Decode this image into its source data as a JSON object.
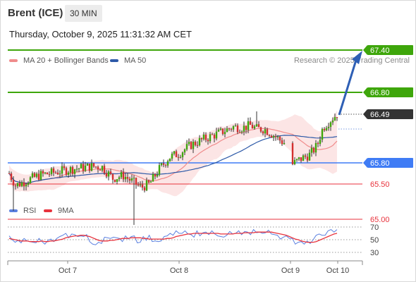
{
  "header": {
    "instrument": "Brent (ICE)",
    "timeframe": "30 MIN",
    "datetime": "Thursday, October 9, 2025 11:31:32 AM CET"
  },
  "legend": {
    "ma20_label": "MA 20 + Bollinger Bands",
    "ma50_label": "MA 50",
    "rsi_label": "RSI",
    "ma9_label": "9MA",
    "watermark": "Research © 2025 Trading Central"
  },
  "colors": {
    "resistance": "#3ea60b",
    "support": "#3f7cf5",
    "target_red": "#e8323c",
    "ma20": "#f08c8c",
    "ma50": "#2e5aa8",
    "bollinger_fill": "#fce0e0",
    "up_candle": "#3ea60b",
    "down_candle": "#d32f2f",
    "arrow": "#2e5fb5",
    "last_price": "#333333",
    "rsi_line": "#5b80e0",
    "rsi_ma": "#e8323c"
  },
  "chart_data": [
    {
      "type": "candlestick",
      "title": "",
      "xlabel": "",
      "ylabel": "",
      "ylim": [
        64.85,
        67.6
      ],
      "x_ticks": [
        "Oct 7",
        "Oct 8",
        "Oct 9",
        "Oct 10"
      ],
      "levels": [
        {
          "label": "67.40",
          "value": 67.4,
          "kind": "resistance"
        },
        {
          "label": "66.80",
          "value": 66.8,
          "kind": "resistance"
        },
        {
          "label": "66.49",
          "value": 66.49,
          "kind": "last"
        },
        {
          "label": "65.80",
          "value": 65.8,
          "kind": "support"
        },
        {
          "label": "65.50",
          "value": 65.5,
          "kind": "target"
        },
        {
          "label": "65.00",
          "value": 65.0,
          "kind": "target"
        }
      ],
      "forecast": {
        "from": 66.49,
        "to": 67.4,
        "direction": "up"
      },
      "indicators": [
        "MA 20 + Bollinger Bands",
        "MA 50"
      ]
    },
    {
      "type": "line",
      "title": "",
      "ylim": [
        20,
        80
      ],
      "y_ticks": [
        "70",
        "50",
        "30"
      ],
      "series": [
        {
          "name": "RSI",
          "values": [
            56,
            50,
            46,
            49,
            45,
            52,
            48,
            47,
            46,
            45,
            52,
            47,
            43,
            49,
            51,
            47,
            52,
            55,
            57,
            60,
            53,
            59,
            58,
            55,
            56,
            55,
            58,
            47,
            43,
            42,
            46,
            44,
            54,
            53,
            52,
            54,
            53,
            52,
            47,
            56,
            51,
            55,
            56,
            45,
            46,
            55,
            49,
            57,
            47,
            48,
            47,
            48,
            55,
            56,
            60,
            57,
            64,
            60,
            60,
            64,
            59,
            58,
            54,
            64,
            56,
            61,
            62,
            58,
            64,
            59,
            56,
            55,
            54,
            57,
            63,
            59,
            60,
            64,
            58,
            63,
            62,
            58,
            66,
            61,
            62,
            60,
            61,
            65,
            59,
            58,
            57,
            51,
            54,
            56,
            52,
            52,
            43,
            46,
            47,
            43,
            48,
            44,
            50,
            57,
            59,
            57,
            57,
            64,
            66,
            62,
            66
          ]
        },
        {
          "name": "9MA",
          "values": [
            52,
            51,
            50,
            49,
            48,
            48,
            48,
            47,
            47,
            47,
            47,
            48,
            47,
            47,
            48,
            48,
            49,
            50,
            51,
            53,
            54,
            55,
            56,
            56,
            57,
            57,
            56,
            55,
            53,
            51,
            49,
            48,
            48,
            48,
            49,
            49,
            50,
            51,
            52,
            52,
            52,
            53,
            53,
            53,
            53,
            52,
            52,
            51,
            51,
            51,
            51,
            51,
            51,
            52,
            52,
            53,
            55,
            56,
            57,
            58,
            59,
            59,
            60,
            60,
            60,
            60,
            60,
            60,
            60,
            60,
            60,
            59,
            59,
            59,
            59,
            59,
            60,
            60,
            60,
            61,
            61,
            61,
            61,
            62,
            62,
            62,
            62,
            62,
            62,
            61,
            60,
            59,
            58,
            57,
            55,
            53,
            51,
            50,
            48,
            47,
            46,
            46,
            46,
            47,
            49,
            51,
            53,
            55,
            57,
            59,
            60
          ]
        }
      ]
    }
  ]
}
